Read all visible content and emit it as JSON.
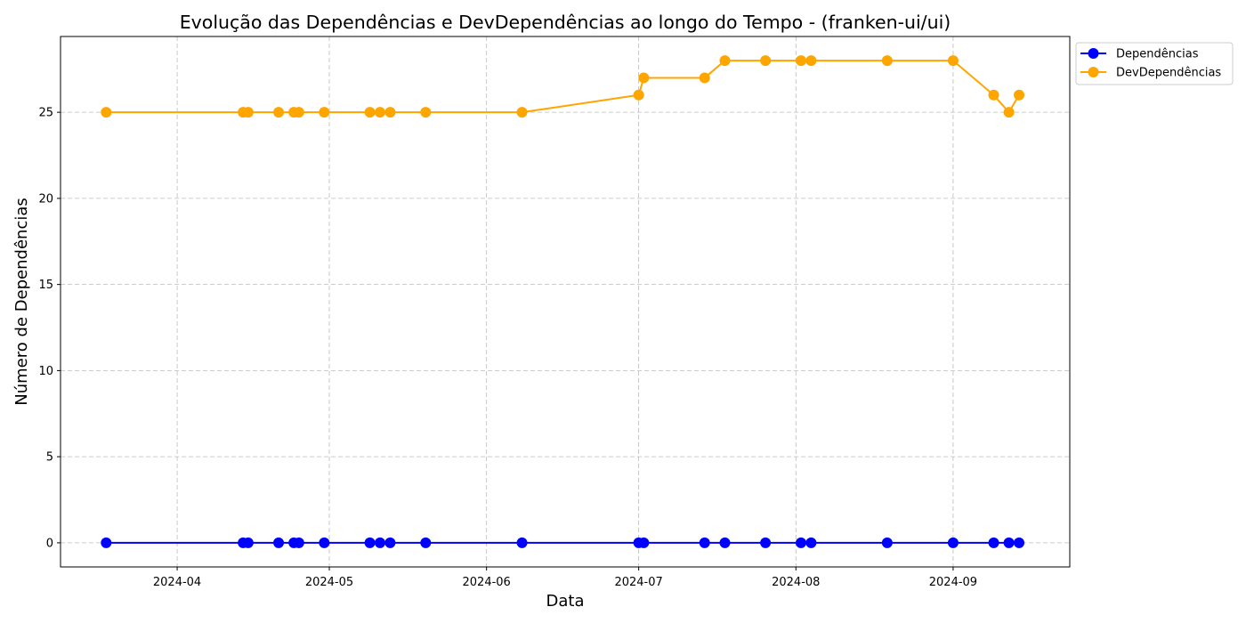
{
  "chart_data": {
    "type": "line",
    "title": "Evolução das Dependências e DevDependências ao longo do Tempo - (franken-ui/ui)",
    "xlabel": "Data",
    "ylabel": "Número de Dependências",
    "x": [
      "2024-03-18",
      "2024-04-14",
      "2024-04-15",
      "2024-04-21",
      "2024-04-24",
      "2024-04-25",
      "2024-04-30",
      "2024-05-09",
      "2024-05-11",
      "2024-05-13",
      "2024-05-20",
      "2024-06-08",
      "2024-07-01",
      "2024-07-02",
      "2024-07-14",
      "2024-07-18",
      "2024-07-26",
      "2024-08-02",
      "2024-08-04",
      "2024-08-19",
      "2024-09-01",
      "2024-09-09",
      "2024-09-12",
      "2024-09-14"
    ],
    "series": [
      {
        "name": "Dependências",
        "color": "#0000ff",
        "values": [
          0,
          0,
          0,
          0,
          0,
          0,
          0,
          0,
          0,
          0,
          0,
          0,
          0,
          0,
          0,
          0,
          0,
          0,
          0,
          0,
          0,
          0,
          0,
          0
        ]
      },
      {
        "name": "DevDependências",
        "color": "#ffa500",
        "values": [
          25,
          25,
          25,
          25,
          25,
          25,
          25,
          25,
          25,
          25,
          25,
          25,
          26,
          27,
          27,
          28,
          28,
          28,
          28,
          28,
          28,
          26,
          25,
          26
        ]
      }
    ],
    "xticks": [
      "2024-04",
      "2024-05",
      "2024-06",
      "2024-07",
      "2024-08",
      "2024-09"
    ],
    "xlim": [
      "2024-03-09",
      "2024-09-24"
    ],
    "yticks": [
      0,
      5,
      10,
      15,
      20,
      25
    ],
    "ylim": [
      -1.4,
      29.4
    ],
    "grid": true,
    "legend_position": "upper-right-outside"
  }
}
